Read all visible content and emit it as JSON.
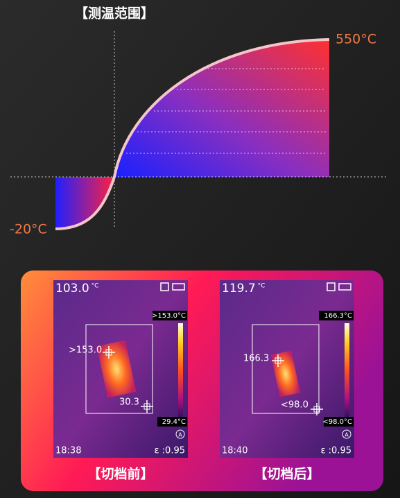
{
  "title": "【测温范围】",
  "range": {
    "max": "550°C",
    "min": "-20°C"
  },
  "panels": [
    {
      "temperature": "103.0",
      "unit": "°C",
      "scale_max": ">153.0°C",
      "scale_min": "29.4°C",
      "hot_marker": ">153.0",
      "cold_marker": "30.3",
      "time": "18:38",
      "emissivity": "ε :0.95",
      "mode": "A",
      "caption": "【切档前】"
    },
    {
      "temperature": "119.7",
      "unit": "°C",
      "scale_max": "166.3°C",
      "scale_min": "<98.0°C",
      "hot_marker": "166.3",
      "cold_marker": "<98.0",
      "time": "18:40",
      "emissivity": "ε :0.95",
      "mode": "A",
      "caption": "【切档后】"
    }
  ]
}
